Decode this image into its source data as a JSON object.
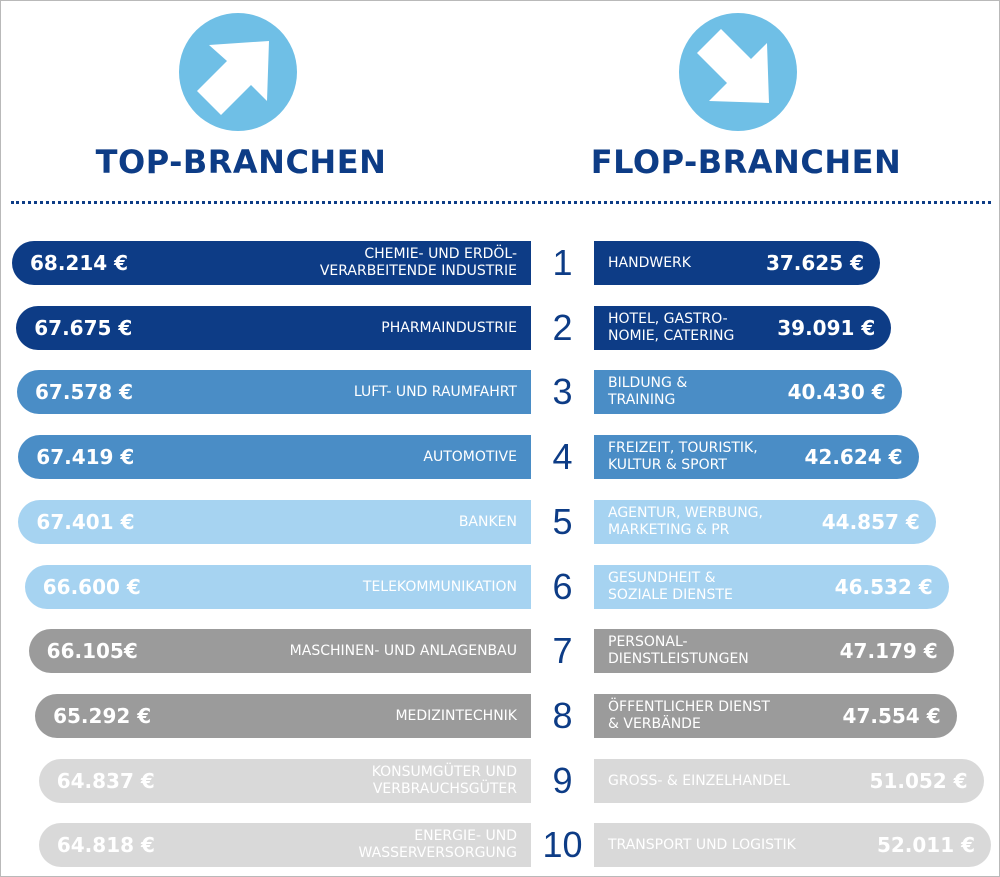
{
  "headings": {
    "top": "TOP-BRANCHEN",
    "flop": "FLOP-BRANCHEN"
  },
  "colors": {
    "navy": "#0d3c86",
    "medium_blue": "#4a8dc6",
    "light_blue": "#a6d3f1",
    "icon_blue": "#6fbfe6",
    "gray": "#9b9b9b",
    "light_gray": "#d9d9d9"
  },
  "icons": {
    "top": "arrow-up-right-icon",
    "flop": "arrow-down-right-icon"
  },
  "chart_data": {
    "type": "bar",
    "ranks": [
      "1",
      "2",
      "3",
      "4",
      "5",
      "6",
      "7",
      "8",
      "9",
      "10"
    ],
    "series": [
      {
        "name": "TOP-BRANCHEN",
        "categories": [
          "CHEMIE- UND ERDÖL-\nVERARBEITENDE INDUSTRIE",
          "PHARMAINDUSTRIE",
          "LUFT- UND RAUMFAHRT",
          "AUTOMOTIVE",
          "BANKEN",
          "TELEKOMMUNIKATION",
          "MASCHINEN- UND ANLAGENBAU",
          "MEDIZINTECHNIK",
          "KONSUMGÜTER UND\nVERBRAUCHSGÜTER",
          "ENERGIE- UND\nWASSERVERSORGUNG"
        ],
        "values": [
          68214,
          67675,
          67578,
          67419,
          67401,
          66600,
          66105,
          65292,
          64837,
          64818
        ],
        "value_labels": [
          "68.214 €",
          "67.675 €",
          "67.578 €",
          "67.419 €",
          "67.401 €",
          "66.600 €",
          "66.105€",
          "65.292 €",
          "64.837 €",
          "64.818 €"
        ]
      },
      {
        "name": "FLOP-BRANCHEN",
        "categories": [
          "HANDWERK",
          "HOTEL, GASTRO-\nNOMIE, CATERING",
          "BILDUNG &\nTRAINING",
          "FREIZEIT, TOURISTIK,\nKULTUR & SPORT",
          "AGENTUR, WERBUNG,\nMARKETING & PR",
          "GESUNDHEIT &\nSOZIALE DIENSTE",
          "PERSONAL-\nDIENSTLEISTUNGEN",
          "ÖFFENTLICHER DIENST\n& VERBÄNDE",
          "GROSS- & EINZELHANDEL",
          "TRANSPORT UND LOGISTIK"
        ],
        "values": [
          37625,
          39091,
          40430,
          42624,
          44857,
          46532,
          47179,
          47554,
          51052,
          52011
        ],
        "value_labels": [
          "37.625 €",
          "39.091 €",
          "40.430 €",
          "42.624 €",
          "44.857 €",
          "46.532 €",
          "47.179 €",
          "47.554 €",
          "51.052 €",
          "52.011 €"
        ]
      }
    ],
    "bar_colors": [
      "#0d3c86",
      "#0d3c86",
      "#4a8dc6",
      "#4a8dc6",
      "#a6d3f1",
      "#a6d3f1",
      "#9b9b9b",
      "#9b9b9b",
      "#d9d9d9",
      "#d9d9d9"
    ],
    "text_colors": [
      "#ffffff",
      "#ffffff",
      "#ffffff",
      "#ffffff",
      "#ffffff",
      "#ffffff",
      "#ffffff",
      "#ffffff",
      "#ffffff",
      "#ffffff"
    ]
  }
}
